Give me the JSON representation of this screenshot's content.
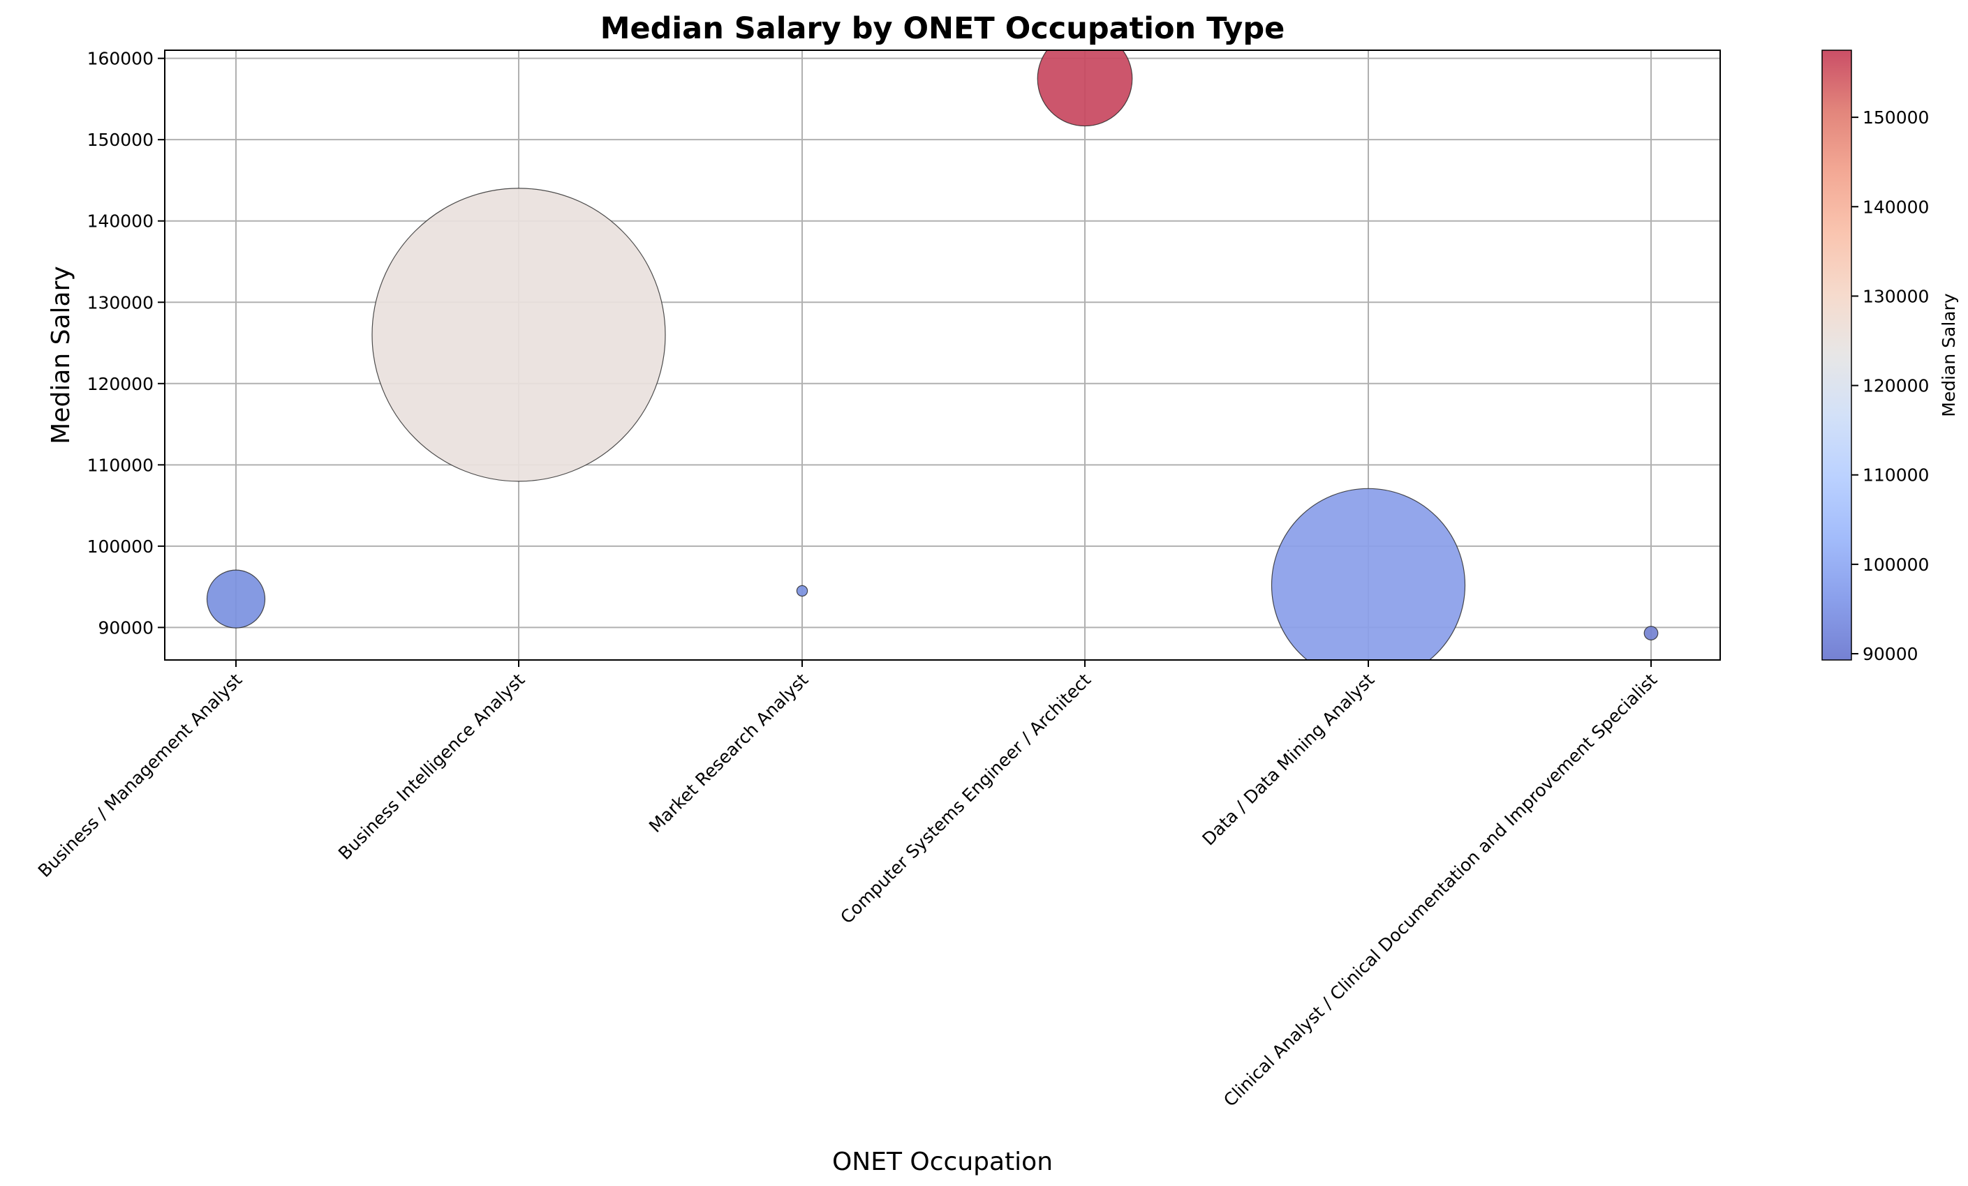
{
  "chart_data": {
    "type": "scatter",
    "title": "Median Salary by ONET Occupation Type",
    "xlabel": "ONET Occupation",
    "ylabel": "Median Salary",
    "categories": [
      "Business / Management Analyst",
      "Business Intelligence Analyst",
      "Market Research Analyst",
      "Computer Systems Engineer / Architect",
      "Data / Data Mining Analyst",
      "Clinical Analyst / Clinical Documentation and Improvement Specialist"
    ],
    "points": [
      {
        "category": "Business / Management Analyst",
        "y": 93500,
        "color": "#7b91e0",
        "size": 9
      },
      {
        "category": "Business Intelligence Analyst",
        "y": 126000,
        "color": "#e9e1dd",
        "size": 230
      },
      {
        "category": "Market Research Analyst",
        "y": 94500,
        "color": "#7b91e0",
        "size": 0.3
      },
      {
        "category": "Computer Systems Engineer / Architect",
        "y": 157500,
        "color": "#c8485f",
        "size": 24
      },
      {
        "category": "Data / Data Mining Analyst",
        "y": 95200,
        "color": "#8a9ee9",
        "size": 100
      },
      {
        "category": "Clinical Analyst / Clinical Documentation and Improvement Specialist",
        "y": 89300,
        "color": "#7482d1",
        "size": 0.5
      }
    ],
    "yticks": [
      90000,
      100000,
      110000,
      120000,
      130000,
      140000,
      150000,
      160000
    ],
    "ytick_labels": [
      "90000",
      "100000",
      "110000",
      "120000",
      "130000",
      "140000",
      "150000",
      "160000"
    ],
    "ylim": [
      86000,
      161000
    ],
    "grid": true,
    "colorbar": {
      "label": "Median Salary",
      "range": [
        89300,
        157500
      ],
      "ticks": [
        90000,
        100000,
        110000,
        120000,
        130000,
        140000,
        150000
      ],
      "tick_labels": [
        "90000",
        "100000",
        "110000",
        "120000",
        "130000",
        "140000",
        "150000"
      ],
      "colormap": [
        "#3b4cc0",
        "#5977e3",
        "#7b9ff9",
        "#9ebeff",
        "#c0d4f5",
        "#dddcdc",
        "#f2cbb7",
        "#f7ac8e",
        "#ee8468",
        "#d65244",
        "#b40426"
      ]
    }
  }
}
